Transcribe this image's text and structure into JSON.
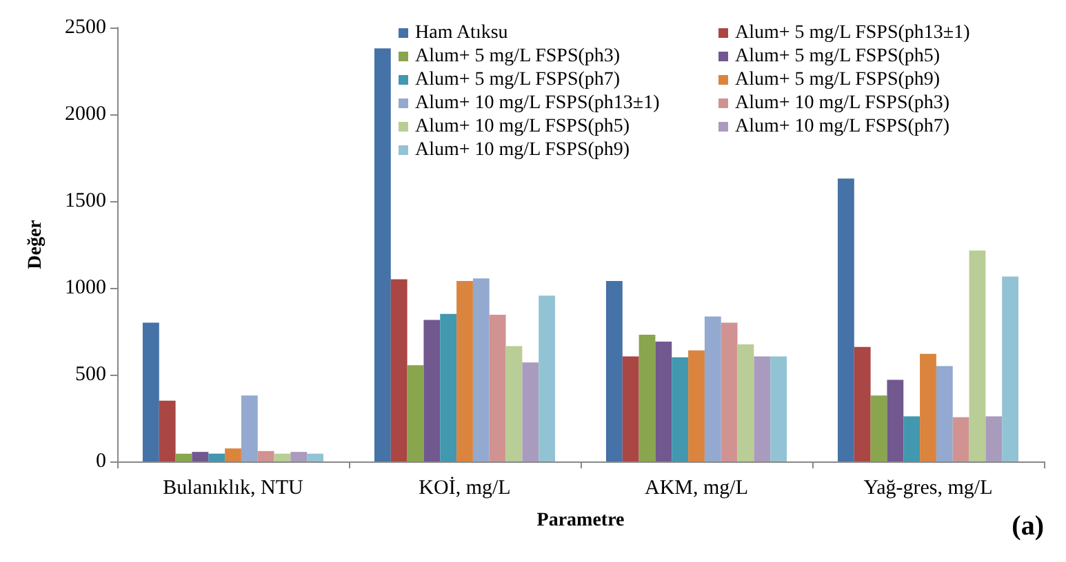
{
  "chart_data": {
    "type": "bar",
    "xlabel": "Parametre",
    "ylabel": "Değer",
    "categories": [
      "Bulanıklık, NTU",
      "KOİ, mg/L",
      "AKM, mg/L",
      "Yağ-gres, mg/L"
    ],
    "ylim": [
      0,
      2500
    ],
    "yticks": [
      0,
      500,
      1000,
      1500,
      2000,
      2500
    ],
    "grid": false,
    "legend": "top right",
    "series": [
      {
        "name": "Ham Atıksu",
        "color": "#4572a7",
        "values": [
          800,
          2380,
          1040,
          1630
        ]
      },
      {
        "name": "Alum+ 5 mg/L FSPS(ph13±1)",
        "color": "#aa4643",
        "values": [
          350,
          1050,
          605,
          660
        ]
      },
      {
        "name": "Alum+ 5 mg/L FSPS(ph3)",
        "color": "#89a54e",
        "values": [
          45,
          555,
          730,
          380
        ]
      },
      {
        "name": "Alum+ 5 mg/L FSPS(ph5)",
        "color": "#71588f",
        "values": [
          55,
          815,
          690,
          470
        ]
      },
      {
        "name": "Alum+ 5 mg/L FSPS(ph7)",
        "color": "#4198af",
        "values": [
          45,
          850,
          600,
          260
        ]
      },
      {
        "name": "Alum+ 5 mg/L FSPS(ph9)",
        "color": "#db843d",
        "values": [
          75,
          1040,
          640,
          620
        ]
      },
      {
        "name": "Alum+ 10 mg/L FSPS(ph13±1)",
        "color": "#93a9cf",
        "values": [
          380,
          1055,
          835,
          550
        ]
      },
      {
        "name": "Alum+ 10 mg/L FSPS(ph3)",
        "color": "#d19392",
        "values": [
          60,
          845,
          800,
          255
        ]
      },
      {
        "name": "Alum+ 10 mg/L FSPS(ph5)",
        "color": "#b9cd96",
        "values": [
          45,
          665,
          675,
          1215
        ]
      },
      {
        "name": "Alum+ 10 mg/L FSPS(ph7)",
        "color": "#a99bbd",
        "values": [
          55,
          570,
          605,
          260
        ]
      },
      {
        "name": "Alum+ 10 mg/L FSPS(ph9)",
        "color": "#92c3d4",
        "values": [
          45,
          955,
          605,
          1065
        ]
      }
    ],
    "annotations": [
      "(a)"
    ]
  }
}
